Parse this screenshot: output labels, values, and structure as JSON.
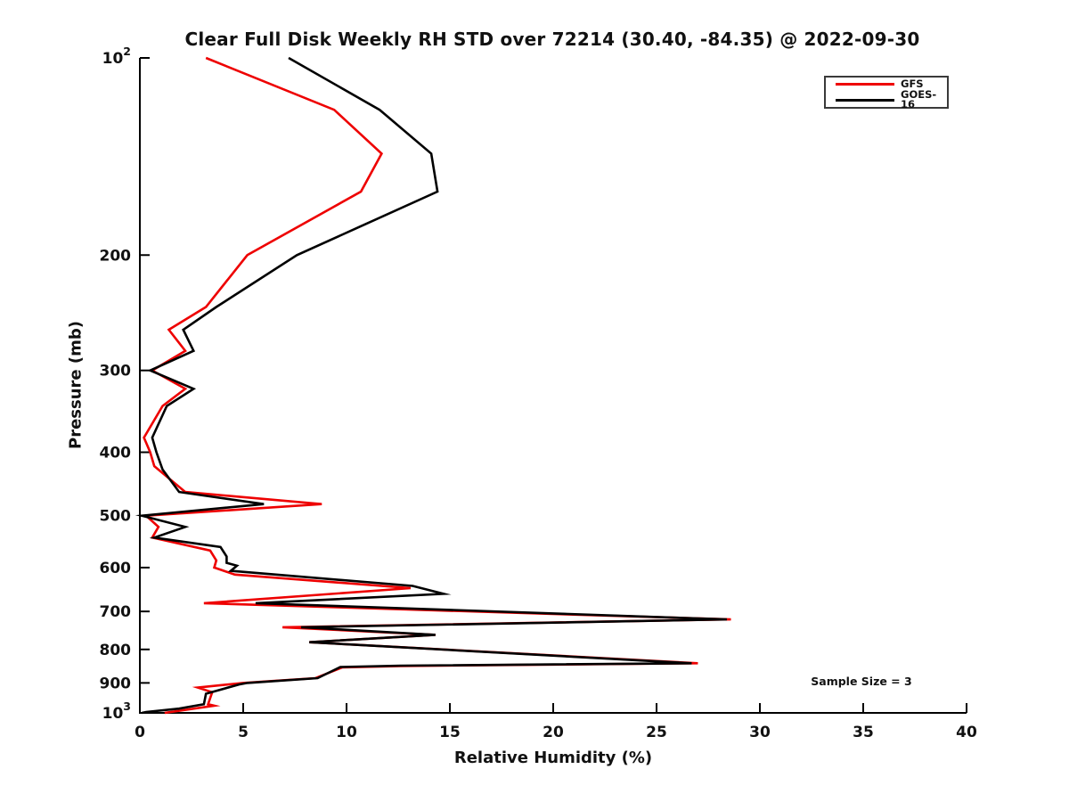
{
  "figure": {
    "title": "Clear Full Disk Weekly RH STD over 72214 (30.40, -84.35) @ 2022-09-30",
    "background": "#ffffff"
  },
  "axes": {
    "x_label": "Relative Humidity (%)",
    "y_label": "Pressure (mb)"
  },
  "legend": {
    "position": "top-right",
    "items": [
      {
        "label": "GFS",
        "color": "#ee0000"
      },
      {
        "label": "GOES-16",
        "color": "#000000"
      }
    ]
  },
  "annotation": {
    "text": "Sample Size = 3"
  },
  "chart_data": {
    "type": "line",
    "title": "Clear Full Disk Weekly RH STD over 72214 (30.40, -84.35) @ 2022-09-30",
    "xlabel": "Relative Humidity (%)",
    "ylabel": "Pressure (mb)",
    "xlim": [
      0,
      40
    ],
    "ylim": [
      100,
      1000
    ],
    "y_scale": "log",
    "y_inverted": true,
    "grid": false,
    "legend_position": "top-right",
    "sample_size": 3,
    "x_ticks": [
      0,
      5,
      10,
      15,
      20,
      25,
      30,
      35,
      40
    ],
    "y_ticks": [
      {
        "value": 100,
        "label": "10^2"
      },
      {
        "value": 200,
        "label": "200"
      },
      {
        "value": 300,
        "label": "300"
      },
      {
        "value": 400,
        "label": "400"
      },
      {
        "value": 500,
        "label": "500"
      },
      {
        "value": 600,
        "label": "600"
      },
      {
        "value": 700,
        "label": "700"
      },
      {
        "value": 800,
        "label": "800"
      },
      {
        "value": 900,
        "label": "900"
      },
      {
        "value": 1000,
        "label": "10^3"
      }
    ],
    "point_format": "[pressure_mb, rh_std_percent]",
    "series": [
      {
        "name": "GFS",
        "color": "#ee0000",
        "points": [
          [
            100,
            3.2
          ],
          [
            120,
            9.4
          ],
          [
            140,
            11.7
          ],
          [
            160,
            10.7
          ],
          [
            200,
            5.2
          ],
          [
            240,
            3.2
          ],
          [
            260,
            1.4
          ],
          [
            280,
            2.2
          ],
          [
            300,
            0.6
          ],
          [
            320,
            2.2
          ],
          [
            340,
            1.1
          ],
          [
            380,
            0.2
          ],
          [
            400,
            0.5
          ],
          [
            420,
            0.7
          ],
          [
            460,
            2.2
          ],
          [
            480,
            8.8
          ],
          [
            500,
            0.3
          ],
          [
            520,
            0.9
          ],
          [
            540,
            0.6
          ],
          [
            565,
            3.4
          ],
          [
            585,
            3.7
          ],
          [
            600,
            3.6
          ],
          [
            615,
            4.6
          ],
          [
            645,
            13.1
          ],
          [
            680,
            3.1
          ],
          [
            720,
            28.6
          ],
          [
            740,
            6.9
          ],
          [
            760,
            14.3
          ],
          [
            780,
            8.2
          ],
          [
            840,
            27.0
          ],
          [
            848,
            12.6
          ],
          [
            852,
            9.8
          ],
          [
            885,
            8.5
          ],
          [
            900,
            5.0
          ],
          [
            915,
            2.8
          ],
          [
            930,
            3.5
          ],
          [
            970,
            3.3
          ],
          [
            975,
            3.6
          ],
          [
            1000,
            1.2
          ]
        ]
      },
      {
        "name": "GOES-16",
        "color": "#000000",
        "points": [
          [
            100,
            7.2
          ],
          [
            120,
            11.6
          ],
          [
            140,
            14.1
          ],
          [
            160,
            14.4
          ],
          [
            200,
            7.6
          ],
          [
            240,
            3.7
          ],
          [
            260,
            2.1
          ],
          [
            280,
            2.6
          ],
          [
            300,
            0.5
          ],
          [
            320,
            2.6
          ],
          [
            340,
            1.3
          ],
          [
            380,
            0.6
          ],
          [
            400,
            0.8
          ],
          [
            425,
            1.1
          ],
          [
            460,
            1.9
          ],
          [
            480,
            6.0
          ],
          [
            500,
            0.1
          ],
          [
            520,
            2.2
          ],
          [
            540,
            0.7
          ],
          [
            558,
            3.9
          ],
          [
            577,
            4.2
          ],
          [
            590,
            4.2
          ],
          [
            596,
            4.7
          ],
          [
            607,
            4.4
          ],
          [
            640,
            13.2
          ],
          [
            658,
            14.7
          ],
          [
            680,
            5.6
          ],
          [
            720,
            28.4
          ],
          [
            740,
            7.8
          ],
          [
            760,
            14.3
          ],
          [
            780,
            8.2
          ],
          [
            840,
            26.7
          ],
          [
            847,
            12.6
          ],
          [
            851,
            9.7
          ],
          [
            885,
            8.6
          ],
          [
            900,
            5.2
          ],
          [
            905,
            4.8
          ],
          [
            935,
            3.2
          ],
          [
            970,
            3.1
          ],
          [
            985,
            1.9
          ],
          [
            997,
            0.3
          ],
          [
            1000,
            0.1
          ]
        ]
      }
    ]
  }
}
